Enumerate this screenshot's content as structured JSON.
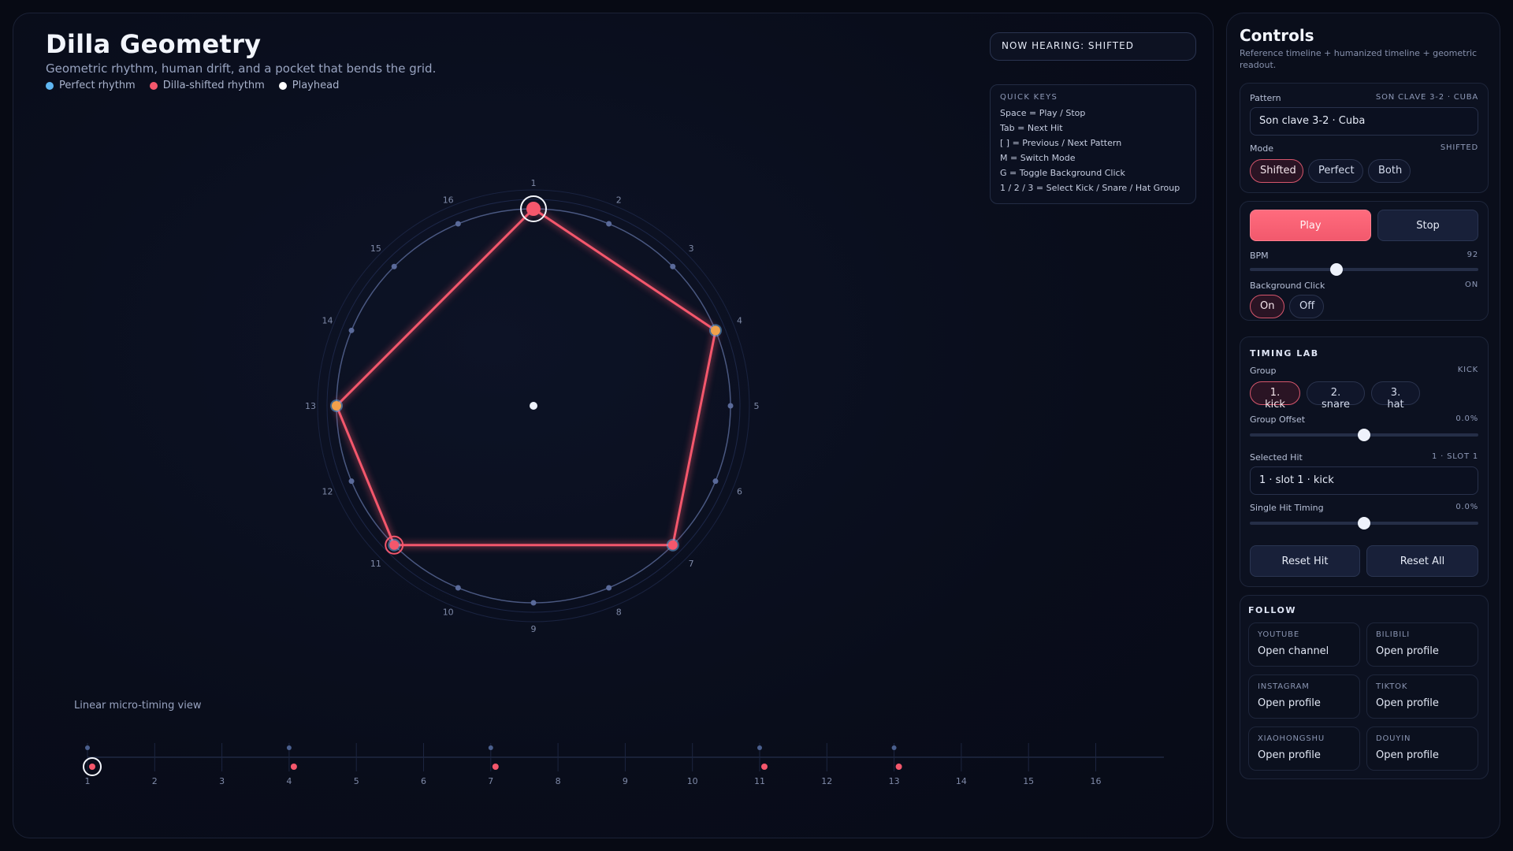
{
  "header": {
    "title": "Dilla Geometry",
    "subtitle": "Geometric rhythm, human drift, and a pocket that bends the grid.",
    "legend": [
      {
        "label": "Perfect rhythm",
        "color": "#5fb6f2"
      },
      {
        "label": "Dilla-shifted rhythm",
        "color": "#f4576c"
      },
      {
        "label": "Playhead",
        "color": "#ffffff"
      }
    ]
  },
  "status": {
    "now_hearing": "NOW HEARING: SHIFTED"
  },
  "quick_keys": {
    "title": "QUICK KEYS",
    "lines": [
      "Space = Play / Stop",
      "Tab = Next Hit",
      "[ ] = Previous / Next Pattern",
      "M = Switch Mode",
      "G = Toggle Background Click",
      "1 / 2 / 3 = Select Kick / Snare / Hat Group"
    ]
  },
  "pattern_view": {
    "steps": 16,
    "step_labels": [
      "1",
      "2",
      "3",
      "4",
      "5",
      "6",
      "7",
      "8",
      "9",
      "10",
      "11",
      "12",
      "13",
      "14",
      "15",
      "16"
    ],
    "hits": [
      1,
      4,
      7,
      11,
      13
    ],
    "selected_hit": 1,
    "colors": {
      "shifted": "#f4576c",
      "perfect": "#5fb6f2",
      "grid": "#5a6a9a",
      "accent": "#f0a04b"
    }
  },
  "timeline": {
    "label": "Linear micro-timing view"
  },
  "controls": {
    "title": "Controls",
    "subtitle": "Reference timeline + humanized timeline + geometric readout.",
    "pattern": {
      "label": "Pattern",
      "value": "SON CLAVE 3-2 · CUBA",
      "selected": "Son clave 3-2 · Cuba"
    },
    "mode": {
      "label": "Mode",
      "value": "SHIFTED",
      "options": [
        "Shifted",
        "Perfect",
        "Both"
      ],
      "active": 0
    },
    "transport": {
      "play": "Play",
      "stop": "Stop"
    },
    "bpm": {
      "label": "BPM",
      "value": "92",
      "fraction": 0.38
    },
    "background_click": {
      "label": "Background Click",
      "value": "ON",
      "options": [
        "On",
        "Off"
      ],
      "active": 0
    },
    "timing_lab": {
      "title": "TIMING LAB",
      "group_label": "Group",
      "group_value": "KICK",
      "groups": [
        "1. kick",
        "2. snare",
        "3. hat"
      ],
      "active_group": 0,
      "group_offset": {
        "label": "Group Offset",
        "value": "0.0%",
        "fraction": 0.5
      },
      "selected_hit": {
        "label": "Selected Hit",
        "value": "1 · SLOT 1",
        "selected": "1 · slot 1 · kick"
      },
      "single_hit": {
        "label": "Single Hit Timing",
        "value": "0.0%",
        "fraction": 0.5
      },
      "reset_hit": "Reset Hit",
      "reset_all": "Reset All"
    },
    "follow": {
      "title": "FOLLOW",
      "links": [
        {
          "name": "YOUTUBE",
          "action": "Open channel"
        },
        {
          "name": "BILIBILI",
          "action": "Open profile"
        },
        {
          "name": "INSTAGRAM",
          "action": "Open profile"
        },
        {
          "name": "TIKTOK",
          "action": "Open profile"
        },
        {
          "name": "XIAOHONGSHU",
          "action": "Open profile"
        },
        {
          "name": "DOUYIN",
          "action": "Open profile"
        }
      ]
    }
  }
}
